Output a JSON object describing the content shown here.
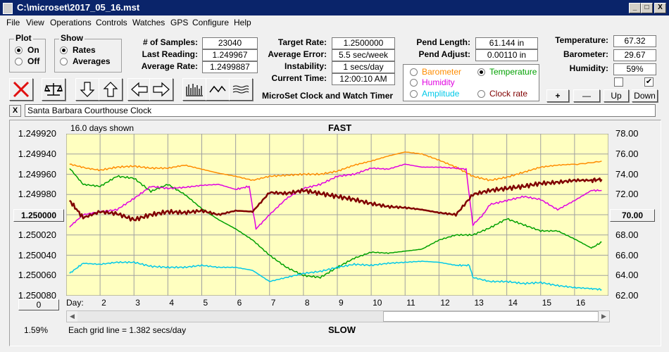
{
  "window": {
    "title": "C:\\microset\\2017_05_16.mst",
    "min_btn": "_",
    "max_btn": "□",
    "close_btn": "X"
  },
  "menu": [
    "File",
    "View",
    "Operations",
    "Controls",
    "Watches",
    "GPS",
    "Configure",
    "Help"
  ],
  "plot_group": {
    "title": "Plot",
    "options": [
      "On",
      "Off"
    ],
    "selected": "On"
  },
  "show_group": {
    "title": "Show",
    "options": [
      "Rates",
      "Averages"
    ],
    "selected": "Rates"
  },
  "stats": {
    "samples_label": "# of Samples:",
    "samples": "23040",
    "last_reading_label": "Last Reading:",
    "last_reading": "1.249967",
    "average_rate_label": "Average Rate:",
    "average_rate": "1.2499887"
  },
  "rates": {
    "target_rate_label": "Target Rate:",
    "target_rate": "1.2500000",
    "average_error_label": "Average Error:",
    "average_error": "5.5 sec/week",
    "instability_label": "Instability:",
    "instability": "1 secs/day",
    "current_time_label": "Current Time:",
    "current_time": "12:00:10 AM"
  },
  "app_name": "MicroSet Clock and Watch Timer",
  "pendulum": {
    "length_label": "Pend Length:",
    "length": "61.144 in",
    "adjust_label": "Pend Adjust:",
    "adjust": "0.00110 in"
  },
  "sensor_radios": [
    {
      "label": "Barometer",
      "color": "#ff8c00",
      "selected": false
    },
    {
      "label": "Temperature",
      "color": "#00a000",
      "selected": true
    },
    {
      "label": "Humidity",
      "color": "#e000e0",
      "selected": false
    },
    {
      "label": "Clock rate",
      "color": "#800000",
      "selected": false
    },
    {
      "label": "Amplitude",
      "color": "#00c8e8",
      "selected": false
    }
  ],
  "environment": {
    "temperature_label": "Temperature:",
    "temperature": "67.32",
    "barometer_label": "Barometer:",
    "barometer": "29.67",
    "humidity_label": "Humidity:",
    "humidity": "59%",
    "check1": false,
    "check2": true
  },
  "adjust_buttons": [
    "+",
    "—",
    "Up",
    "Down"
  ],
  "clock_name": "Santa Barbara Courthouse Clock",
  "clear_btn": "X",
  "left_value_btn": "1.250000",
  "right_value_btn": "70.00",
  "zero_btn": "0",
  "amplitude_pct": "1.59%",
  "grid_note": "Each grid line = 1.382 secs/day",
  "chart_data": {
    "type": "line",
    "top_label": "FAST",
    "bottom_label": "SLOW",
    "days_shown": "16.0 days shown",
    "x_axis_label": "Day:",
    "x_ticks": [
      2,
      3,
      4,
      5,
      6,
      7,
      8,
      9,
      10,
      11,
      12,
      13,
      14,
      15,
      16
    ],
    "x_range": [
      1.0,
      17.0
    ],
    "left_axis": {
      "ticks": [
        "1.249920",
        "1.249940",
        "1.249960",
        "1.249980",
        "1.250000",
        "1.250020",
        "1.250040",
        "1.250060",
        "1.250080"
      ],
      "range": [
        1.24992,
        1.25008
      ],
      "inverted": true
    },
    "right_axis": {
      "ticks": [
        "78.00",
        "76.00",
        "74.00",
        "72.00",
        "70.00",
        "68.00",
        "66.00",
        "64.00",
        "62.00"
      ],
      "range": [
        62,
        78
      ]
    },
    "grid": true,
    "series": [
      {
        "name": "Barometer",
        "color": "#ff8c00",
        "scale": "right",
        "width": 1.5,
        "x": [
          1.1,
          1.6,
          2.0,
          2.5,
          3.0,
          3.5,
          4.0,
          4.5,
          5.0,
          5.5,
          6.0,
          6.5,
          7.0,
          7.5,
          8.0,
          8.5,
          9.0,
          9.5,
          10.0,
          10.5,
          11.0,
          11.5,
          12.0,
          12.5,
          13.0,
          13.5,
          14.0,
          14.5,
          15.0,
          15.5,
          16.0,
          16.8
        ],
        "y": [
          75.0,
          74.6,
          74.4,
          74.7,
          74.8,
          74.6,
          74.6,
          74.9,
          74.5,
          74.1,
          73.8,
          73.4,
          73.8,
          73.9,
          74.0,
          74.0,
          74.3,
          74.9,
          75.3,
          75.8,
          76.2,
          76.0,
          75.4,
          74.7,
          73.8,
          73.4,
          73.7,
          74.2,
          74.7,
          74.9,
          75.0,
          75.3
        ]
      },
      {
        "name": "Temperature",
        "color": "#00a000",
        "scale": "right",
        "width": 1.5,
        "x": [
          1.1,
          1.5,
          2.0,
          2.5,
          3.0,
          3.5,
          4.0,
          4.5,
          5.0,
          5.5,
          6.0,
          6.5,
          7.0,
          7.5,
          8.0,
          8.5,
          9.0,
          9.5,
          10.0,
          10.5,
          11.0,
          11.5,
          12.0,
          12.5,
          13.0,
          13.5,
          14.0,
          14.5,
          15.0,
          15.5,
          16.0,
          16.5,
          16.8
        ],
        "y": [
          74.6,
          73.0,
          72.8,
          73.8,
          73.6,
          72.3,
          73.0,
          72.0,
          70.6,
          69.5,
          68.6,
          67.5,
          66.0,
          64.8,
          64.0,
          63.8,
          64.8,
          65.7,
          66.3,
          66.2,
          66.4,
          66.6,
          67.5,
          68.0,
          68.0,
          68.7,
          69.6,
          69.0,
          68.4,
          68.4,
          67.6,
          66.7,
          67.3
        ]
      },
      {
        "name": "Humidity",
        "color": "#e000e0",
        "scale": "right",
        "width": 1.5,
        "x": [
          1.1,
          1.5,
          2.0,
          2.5,
          3.0,
          3.5,
          4.0,
          4.5,
          5.0,
          5.5,
          6.0,
          6.4,
          6.6,
          7.0,
          7.5,
          8.0,
          8.5,
          9.0,
          9.5,
          10.0,
          10.5,
          11.0,
          11.5,
          12.0,
          12.5,
          12.8,
          13.0,
          13.3,
          13.5,
          14.0,
          14.5,
          15.0,
          15.5,
          16.0,
          16.5,
          16.8
        ],
        "y": [
          68.8,
          70.0,
          70.3,
          70.5,
          71.6,
          72.8,
          72.6,
          72.7,
          72.9,
          73.0,
          72.5,
          72.8,
          68.6,
          70.0,
          71.6,
          72.6,
          73.0,
          73.8,
          74.0,
          74.6,
          74.5,
          75.0,
          74.7,
          74.7,
          74.6,
          74.5,
          69.0,
          70.0,
          71.0,
          71.4,
          71.8,
          71.5,
          70.5,
          71.4,
          72.4,
          72.4
        ]
      },
      {
        "name": "Clock rate",
        "color": "#800000",
        "scale": "right",
        "width": 2.5,
        "x": [
          1.1,
          1.5,
          2.0,
          2.5,
          3.0,
          3.5,
          4.0,
          4.5,
          5.0,
          5.5,
          6.0,
          6.5,
          7.0,
          7.5,
          8.0,
          8.5,
          9.0,
          9.5,
          10.0,
          10.5,
          11.0,
          11.5,
          12.0,
          12.5,
          13.0,
          13.5,
          14.0,
          14.5,
          15.0,
          15.5,
          16.0,
          16.5,
          16.8
        ],
        "y": [
          71.4,
          69.7,
          70.3,
          70.1,
          69.5,
          70.0,
          70.3,
          70.2,
          70.4,
          70.0,
          70.4,
          70.3,
          72.2,
          72.1,
          72.4,
          72.1,
          71.8,
          71.5,
          71.1,
          70.8,
          70.7,
          70.5,
          70.2,
          70.0,
          72.0,
          72.4,
          72.6,
          72.8,
          73.1,
          73.2,
          73.4,
          73.4,
          73.5
        ]
      },
      {
        "name": "Amplitude",
        "color": "#00c8e8",
        "scale": "right",
        "width": 1.5,
        "x": [
          1.1,
          1.5,
          2.0,
          2.5,
          3.0,
          3.5,
          4.0,
          4.5,
          5.0,
          5.5,
          6.0,
          6.5,
          7.0,
          7.5,
          8.0,
          8.5,
          9.0,
          9.5,
          10.0,
          10.5,
          11.0,
          11.5,
          12.0,
          12.5,
          12.9,
          13.0,
          13.5,
          14.0,
          14.5,
          15.0,
          15.5,
          16.0,
          16.5,
          16.8
        ],
        "y": [
          64.2,
          65.2,
          65.1,
          65.3,
          65.3,
          64.9,
          64.8,
          64.8,
          65.0,
          64.8,
          64.8,
          64.5,
          63.4,
          63.8,
          64.2,
          64.4,
          64.8,
          65.1,
          65.0,
          65.2,
          65.3,
          65.4,
          65.3,
          65.0,
          65.0,
          63.8,
          63.4,
          63.4,
          63.2,
          63.3,
          63.0,
          62.8,
          62.7,
          62.6
        ]
      }
    ]
  }
}
